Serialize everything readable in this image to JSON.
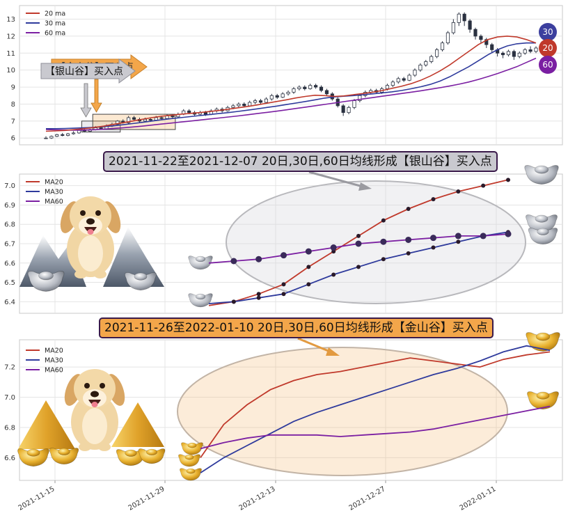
{
  "colors": {
    "ma20": "#c0392b",
    "ma30": "#2e3a9c",
    "ma60": "#7b1fa2",
    "gold": "#f3a64a",
    "silver": "#c9c9cf"
  },
  "badges": {
    "ma30": "30",
    "ma20": "20",
    "ma60": "60"
  },
  "annotations": {
    "silver": "2021-11-22至2021-12-07 20日,30日,60日均线形成【银山谷】买入点",
    "gold": "2021-11-26至2022-01-10 20日,30日,60日均线形成【金山谷】买入点",
    "silver_arrow": "【银山谷】买入点",
    "gold_arrow": "【金山谷】买入点"
  },
  "chart_data": [
    {
      "type": "candlestick",
      "legend": [
        "20 ma",
        "30 ma",
        "60 ma"
      ],
      "legend_position": "top-left",
      "yticks": [
        6,
        7,
        8,
        9,
        10,
        11,
        12,
        13
      ],
      "ylim": [
        5.6,
        13.8
      ],
      "grid": true,
      "candles": [
        [
          6.0,
          6.0,
          5.95,
          6.1
        ],
        [
          6.0,
          6.1,
          5.95,
          6.15
        ],
        [
          6.1,
          6.2,
          6.05,
          6.25
        ],
        [
          6.2,
          6.15,
          6.1,
          6.3
        ],
        [
          6.15,
          6.25,
          6.1,
          6.3
        ],
        [
          6.25,
          6.3,
          6.2,
          6.4
        ],
        [
          6.3,
          6.45,
          6.25,
          6.5
        ],
        [
          6.45,
          6.4,
          6.35,
          6.55
        ],
        [
          6.4,
          6.5,
          6.35,
          6.55
        ],
        [
          6.5,
          6.6,
          6.45,
          6.7
        ],
        [
          6.6,
          6.55,
          6.5,
          6.7
        ],
        [
          6.55,
          6.7,
          6.5,
          6.8
        ],
        [
          6.7,
          6.8,
          6.65,
          6.9
        ],
        [
          6.8,
          7.0,
          6.75,
          7.05
        ],
        [
          7.0,
          6.9,
          6.85,
          7.1
        ],
        [
          6.9,
          7.2,
          6.85,
          7.3
        ],
        [
          7.2,
          7.1,
          7.0,
          7.3
        ],
        [
          7.1,
          7.0,
          6.9,
          7.2
        ],
        [
          7.0,
          7.1,
          6.95,
          7.2
        ],
        [
          7.1,
          7.05,
          6.95,
          7.2
        ],
        [
          7.05,
          7.2,
          7.0,
          7.3
        ],
        [
          7.2,
          7.15,
          7.05,
          7.3
        ],
        [
          7.15,
          7.3,
          7.1,
          7.4
        ],
        [
          7.3,
          7.25,
          7.15,
          7.4
        ],
        [
          7.25,
          7.4,
          7.2,
          7.5
        ],
        [
          7.4,
          7.6,
          7.35,
          7.7
        ],
        [
          7.6,
          7.5,
          7.4,
          7.7
        ],
        [
          7.5,
          7.4,
          7.3,
          7.6
        ],
        [
          7.4,
          7.5,
          7.35,
          7.6
        ],
        [
          7.5,
          7.4,
          7.3,
          7.6
        ],
        [
          7.4,
          7.6,
          7.35,
          7.7
        ],
        [
          7.6,
          7.7,
          7.5,
          7.8
        ],
        [
          7.7,
          7.6,
          7.5,
          7.8
        ],
        [
          7.6,
          7.8,
          7.55,
          7.9
        ],
        [
          7.8,
          7.9,
          7.7,
          8.0
        ],
        [
          7.9,
          8.0,
          7.8,
          8.1
        ],
        [
          8.0,
          7.9,
          7.8,
          8.1
        ],
        [
          7.9,
          8.1,
          7.85,
          8.2
        ],
        [
          8.1,
          8.2,
          8.0,
          8.3
        ],
        [
          8.2,
          8.1,
          8.0,
          8.3
        ],
        [
          8.1,
          8.3,
          8.05,
          8.4
        ],
        [
          8.3,
          8.5,
          8.2,
          8.6
        ],
        [
          8.5,
          8.4,
          8.3,
          8.6
        ],
        [
          8.4,
          8.6,
          8.35,
          8.7
        ],
        [
          8.6,
          8.7,
          8.5,
          8.8
        ],
        [
          8.7,
          8.9,
          8.6,
          9.0
        ],
        [
          8.9,
          9.0,
          8.8,
          9.1
        ],
        [
          9.0,
          8.9,
          8.8,
          9.1
        ],
        [
          8.9,
          9.1,
          8.85,
          9.2
        ],
        [
          9.1,
          9.0,
          8.9,
          9.2
        ],
        [
          9.0,
          8.8,
          8.7,
          9.1
        ],
        [
          8.8,
          8.6,
          8.5,
          8.9
        ],
        [
          8.6,
          8.3,
          8.2,
          8.7
        ],
        [
          8.3,
          7.9,
          7.8,
          8.4
        ],
        [
          7.9,
          7.5,
          7.3,
          8.0
        ],
        [
          7.5,
          7.8,
          7.4,
          7.9
        ],
        [
          7.8,
          8.2,
          7.7,
          8.3
        ],
        [
          8.2,
          8.5,
          8.1,
          8.6
        ],
        [
          8.5,
          8.7,
          8.4,
          8.8
        ],
        [
          8.7,
          8.8,
          8.6,
          8.9
        ],
        [
          8.8,
          8.7,
          8.6,
          8.9
        ],
        [
          8.7,
          8.9,
          8.6,
          9.0
        ],
        [
          8.9,
          9.1,
          8.8,
          9.2
        ],
        [
          9.1,
          9.3,
          9.0,
          9.4
        ],
        [
          9.3,
          9.5,
          9.2,
          9.6
        ],
        [
          9.5,
          9.4,
          9.3,
          9.6
        ],
        [
          9.4,
          9.7,
          9.35,
          9.8
        ],
        [
          9.7,
          10.0,
          9.6,
          10.1
        ],
        [
          10.0,
          10.3,
          9.9,
          10.4
        ],
        [
          10.3,
          10.5,
          10.2,
          10.6
        ],
        [
          10.5,
          10.8,
          10.4,
          10.9
        ],
        [
          10.8,
          11.2,
          10.7,
          11.3
        ],
        [
          11.2,
          11.6,
          11.1,
          11.7
        ],
        [
          11.6,
          12.2,
          11.5,
          12.3
        ],
        [
          12.2,
          12.8,
          12.1,
          13.0
        ],
        [
          12.8,
          13.3,
          12.6,
          13.4
        ],
        [
          13.3,
          12.9,
          12.6,
          13.4
        ],
        [
          12.9,
          12.4,
          12.2,
          13.0
        ],
        [
          12.4,
          12.0,
          11.8,
          12.5
        ],
        [
          12.0,
          11.8,
          11.6,
          12.1
        ],
        [
          11.8,
          11.5,
          11.3,
          11.9
        ],
        [
          11.5,
          11.2,
          11.0,
          11.6
        ],
        [
          11.2,
          11.0,
          10.8,
          11.3
        ],
        [
          11.0,
          10.9,
          10.7,
          11.1
        ],
        [
          10.9,
          11.1,
          10.8,
          11.2
        ],
        [
          11.1,
          10.8,
          10.6,
          11.2
        ],
        [
          10.8,
          11.0,
          10.7,
          11.1
        ],
        [
          11.0,
          11.2,
          10.9,
          11.3
        ],
        [
          11.2,
          11.1,
          11.0,
          11.4
        ],
        [
          11.1,
          11.3,
          11.0,
          11.4
        ]
      ],
      "ma20": [
        6.4,
        6.42,
        6.45,
        6.5,
        6.55,
        6.62,
        6.7,
        6.8,
        6.9,
        7.0,
        7.1,
        7.2,
        7.28,
        7.34,
        7.4,
        7.45,
        7.5,
        7.56,
        7.62,
        7.7,
        7.78,
        7.86,
        7.95,
        8.05,
        8.15,
        8.25,
        8.36,
        8.45,
        8.52,
        8.5,
        8.45,
        8.48,
        8.55,
        8.62,
        8.7,
        8.8,
        8.92,
        9.05,
        9.2,
        9.4,
        9.65,
        9.95,
        10.3,
        10.7,
        11.1,
        11.5,
        11.8,
        11.95,
        12.0,
        11.95,
        11.8,
        11.6
      ],
      "ma30": [
        6.55,
        6.55,
        6.56,
        6.58,
        6.6,
        6.63,
        6.67,
        6.72,
        6.78,
        6.85,
        6.92,
        7.0,
        7.07,
        7.14,
        7.2,
        7.26,
        7.32,
        7.38,
        7.44,
        7.5,
        7.57,
        7.64,
        7.72,
        7.8,
        7.88,
        7.97,
        8.06,
        8.15,
        8.25,
        8.35,
        8.42,
        8.46,
        8.5,
        8.55,
        8.6,
        8.66,
        8.72,
        8.8,
        8.9,
        9.02,
        9.16,
        9.35,
        9.6,
        9.9,
        10.2,
        10.55,
        10.9,
        11.2,
        11.42,
        11.55,
        11.6,
        11.6
      ],
      "ma60": [
        6.5,
        6.48,
        6.47,
        6.46,
        6.47,
        6.49,
        6.52,
        6.56,
        6.6,
        6.65,
        6.7,
        6.76,
        6.82,
        6.88,
        6.94,
        7.0,
        7.06,
        7.12,
        7.18,
        7.24,
        7.3,
        7.37,
        7.44,
        7.51,
        7.58,
        7.66,
        7.74,
        7.82,
        7.9,
        7.98,
        8.06,
        8.14,
        8.22,
        8.3,
        8.38,
        8.46,
        8.54,
        8.62,
        8.7,
        8.78,
        8.87,
        8.96,
        9.06,
        9.17,
        9.3,
        9.45,
        9.62,
        9.8,
        10.0,
        10.2,
        10.45,
        10.7
      ],
      "silver_box": [
        6.35,
        7.0
      ],
      "gold_box": [
        6.5,
        7.4
      ]
    },
    {
      "type": "line",
      "legend": [
        "MA20",
        "MA30",
        "MA60"
      ],
      "legend_position": "top-left",
      "yticks": [
        6.4,
        6.5,
        6.6,
        6.7,
        6.8,
        6.9,
        7.0
      ],
      "ylim": [
        6.34,
        7.06
      ],
      "grid": true,
      "series": [
        {
          "name": "MA20",
          "values": [
            6.38,
            6.4,
            6.44,
            6.49,
            6.58,
            6.66,
            6.74,
            6.82,
            6.88,
            6.93,
            6.97,
            7.0,
            7.03
          ]
        },
        {
          "name": "MA30",
          "values": [
            6.39,
            6.4,
            6.42,
            6.44,
            6.49,
            6.54,
            6.58,
            6.62,
            6.65,
            6.68,
            6.71,
            6.74,
            6.76
          ]
        },
        {
          "name": "MA60",
          "values": [
            6.6,
            6.61,
            6.62,
            6.64,
            6.66,
            6.68,
            6.7,
            6.71,
            6.72,
            6.73,
            6.74,
            6.74,
            6.75
          ]
        }
      ]
    },
    {
      "type": "line",
      "legend": [
        "MA20",
        "MA30",
        "MA60"
      ],
      "legend_position": "top-left",
      "yticks": [
        6.6,
        6.8,
        7.0,
        7.2
      ],
      "ylim": [
        6.45,
        7.38
      ],
      "grid": true,
      "x": [
        "2021-11-26",
        "2021-11-30",
        "2021-12-02",
        "2021-12-06",
        "2021-12-08",
        "2021-12-10",
        "2021-12-14",
        "2021-12-16",
        "2021-12-20",
        "2021-12-22",
        "2021-12-24",
        "2021-12-28",
        "2021-12-30",
        "2022-01-04",
        "2022-01-06",
        "2022-01-10"
      ],
      "xticks": [
        "2021-11-15",
        "2021-11-29",
        "2021-12-13",
        "2021-12-27",
        "2022-01-11"
      ],
      "series": [
        {
          "name": "MA20",
          "values": [
            6.6,
            6.82,
            6.95,
            7.05,
            7.11,
            7.15,
            7.17,
            7.2,
            7.23,
            7.26,
            7.24,
            7.22,
            7.2,
            7.25,
            7.28,
            7.3
          ]
        },
        {
          "name": "MA30",
          "values": [
            6.5,
            6.6,
            6.68,
            6.76,
            6.84,
            6.9,
            6.95,
            7.0,
            7.05,
            7.1,
            7.15,
            7.19,
            7.24,
            7.3,
            7.34,
            7.31
          ]
        },
        {
          "name": "MA60",
          "values": [
            6.66,
            6.7,
            6.73,
            6.75,
            6.75,
            6.75,
            6.74,
            6.75,
            6.76,
            6.77,
            6.79,
            6.82,
            6.85,
            6.88,
            6.91,
            6.94
          ]
        }
      ]
    }
  ]
}
